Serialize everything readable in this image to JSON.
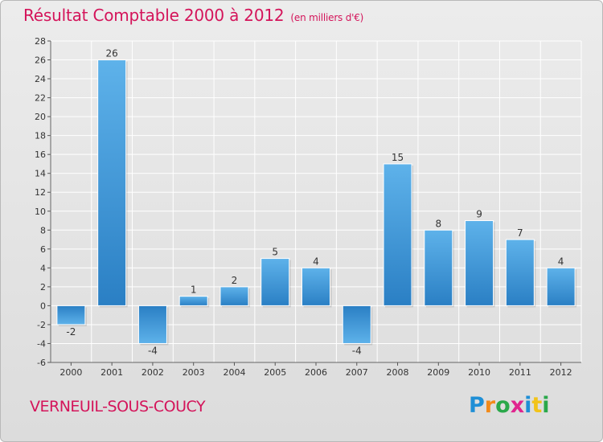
{
  "title": "Résultat Comptable 2000 à 2012",
  "units": "(en milliers d'€)",
  "commune": "VERNEUIL-SOUS-COUCY",
  "logo": {
    "text": "Proxiti",
    "letters": [
      {
        "ch": "P",
        "color": "#1f8fd6"
      },
      {
        "ch": "r",
        "color": "#f28a1a"
      },
      {
        "ch": "o",
        "color": "#2aa84a"
      },
      {
        "ch": "x",
        "color": "#e0248e"
      },
      {
        "ch": "i",
        "color": "#1f8fd6"
      },
      {
        "ch": "t",
        "color": "#f2c31a"
      },
      {
        "ch": "i",
        "color": "#2aa84a"
      }
    ]
  },
  "colors": {
    "title": "#d4145a",
    "bar_light": "#5aaee8",
    "bar_dark": "#2a7fc4",
    "grid": "#ffffff"
  },
  "chart_data": {
    "type": "bar",
    "title": "Résultat Comptable 2000 à 2012",
    "subtitle": "(en milliers d'€)",
    "categories": [
      "2000",
      "2001",
      "2002",
      "2003",
      "2004",
      "2005",
      "2006",
      "2007",
      "2008",
      "2009",
      "2010",
      "2011",
      "2012"
    ],
    "values": [
      -2,
      26,
      -4,
      1,
      2,
      5,
      4,
      -4,
      15,
      8,
      9,
      7,
      4
    ],
    "value_labels": [
      "-2",
      "26",
      "-4",
      "1",
      "2",
      "5",
      "4",
      "-4",
      "15",
      "8",
      "9",
      "7",
      "4"
    ],
    "ylim": [
      -6,
      28
    ],
    "yticks": [
      -6,
      -4,
      -2,
      0,
      2,
      4,
      6,
      8,
      10,
      12,
      14,
      16,
      18,
      20,
      22,
      24,
      26,
      28
    ],
    "grid": true,
    "xlabel": "",
    "ylabel": ""
  }
}
